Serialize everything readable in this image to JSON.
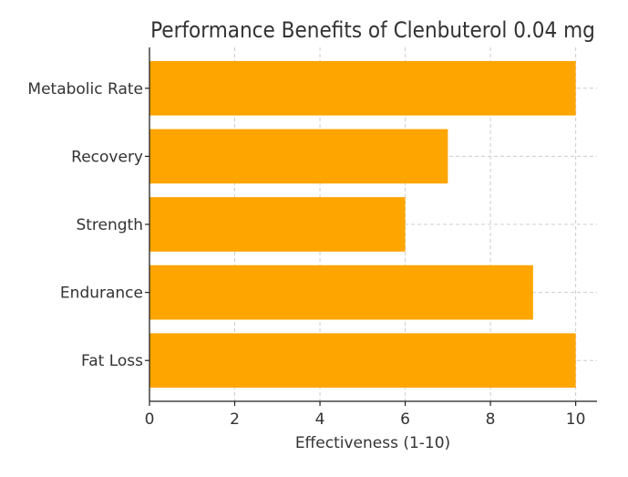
{
  "chart_data": {
    "type": "bar",
    "orientation": "horizontal",
    "title": "Performance Benefits of Clenbuterol 0.04 mg",
    "xlabel": "Effectiveness (1-10)",
    "ylabel": "",
    "categories": [
      "Fat Loss",
      "Endurance",
      "Strength",
      "Recovery",
      "Metabolic Rate"
    ],
    "values": [
      10,
      9,
      6,
      7,
      10
    ],
    "xlim": [
      0,
      10.5
    ],
    "xticks": [
      "0",
      "2",
      "4",
      "6",
      "8",
      "10"
    ],
    "bar_color": "#FFA500",
    "grid": true,
    "legend": "none"
  }
}
